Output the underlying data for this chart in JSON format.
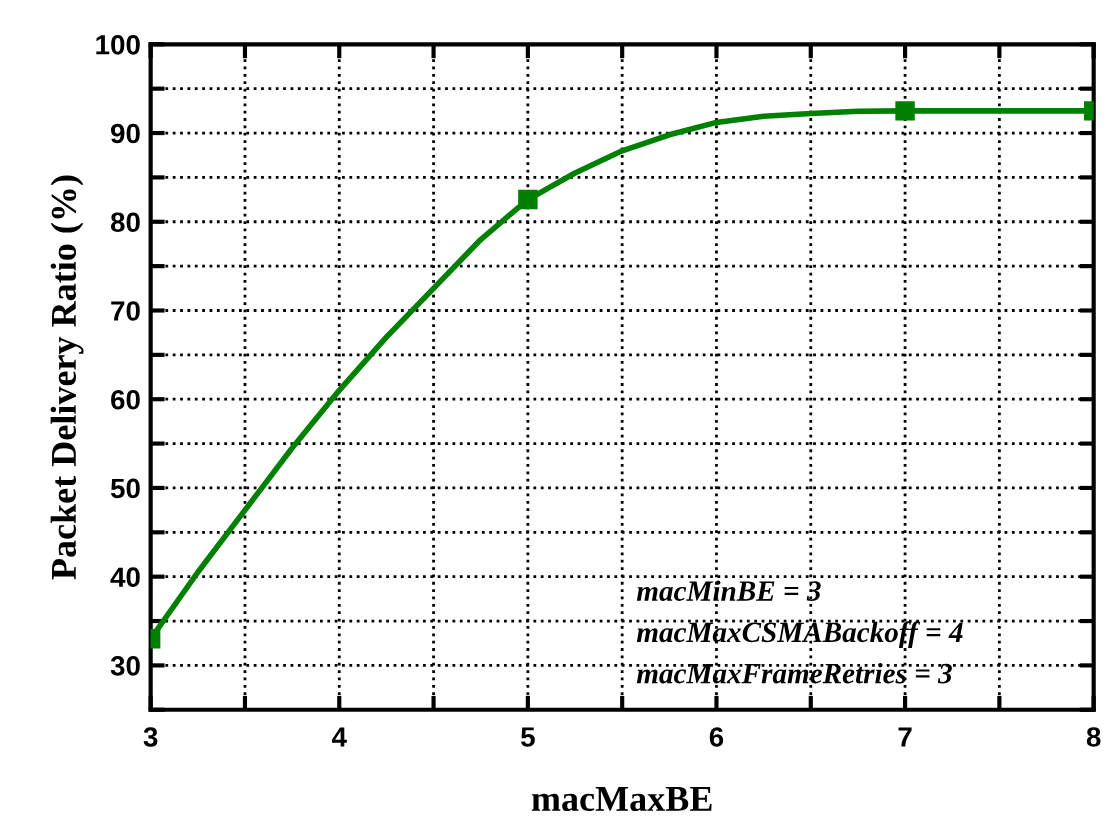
{
  "chart_data": {
    "type": "line",
    "xlabel": "macMaxBE",
    "ylabel": "Packet Delivery Ratio (%)",
    "x": [
      3,
      5,
      7,
      8
    ],
    "series": [
      {
        "color": "#008000",
        "marker": "none",
        "x": [
          3,
          3.25,
          3.5,
          3.75,
          4,
          4.25,
          4.5,
          4.75,
          5,
          5.25,
          5.5,
          5.75,
          6,
          6.25,
          6.5,
          6.75,
          7,
          8
        ],
        "values": [
          33,
          40.5,
          47.5,
          54.5,
          61,
          67,
          72.5,
          78,
          82.5,
          85.5,
          88,
          89.8,
          91.2,
          91.9,
          92.2,
          92.45,
          92.5,
          92.5
        ]
      },
      {
        "type": "scatter",
        "color": "#008000",
        "marker": "square",
        "values": [
          33,
          82.5,
          92.5,
          92.5
        ]
      }
    ],
    "line_style": "solid",
    "xlim": [
      3,
      8
    ],
    "ylim": [
      25,
      100
    ],
    "xticks": [
      3,
      {
        "value": 3.5,
        "label": null
      },
      4,
      {
        "value": 4.5,
        "label": null
      },
      5,
      {
        "value": 5.5,
        "label": null
      },
      6,
      {
        "value": 6.5,
        "label": null
      },
      7,
      {
        "value": 7.5,
        "label": null
      },
      8
    ],
    "yticks": [
      {
        "value": 25,
        "label": null
      },
      30,
      {
        "value": 35,
        "label": null
      },
      40,
      {
        "value": 45,
        "label": null
      },
      50,
      {
        "value": 55,
        "label": null
      },
      60,
      {
        "value": 65,
        "label": null
      },
      70,
      {
        "value": 75,
        "label": null
      },
      80,
      {
        "value": 85,
        "label": null
      },
      90,
      {
        "value": 95,
        "label": null
      },
      100
    ],
    "grid": true,
    "annotations": [
      "macMinBE = 3",
      "macMaxCSMABackoff = 4",
      "macMaxFrameRetries = 3"
    ]
  }
}
